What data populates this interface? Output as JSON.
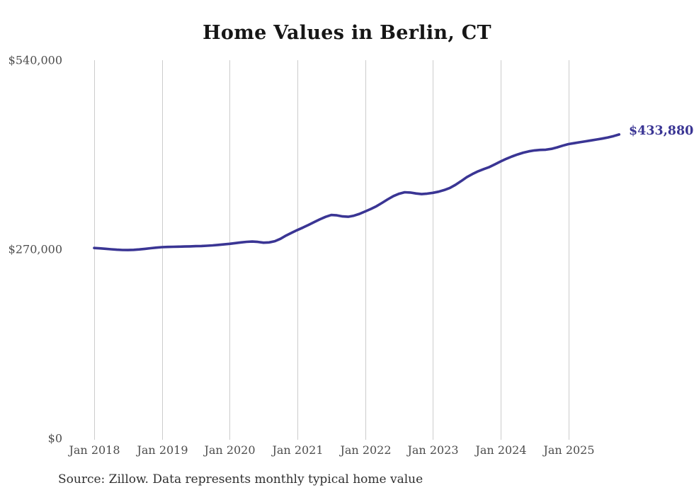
{
  "title": "Home Values in Berlin, CT",
  "source_note": "Source: Zillow. Data represents monthly typical home value",
  "end_label": "$433,880",
  "colors": {
    "line": "#3a3594",
    "end_label_text": "#3a3594",
    "grid": "#cccccc",
    "axis_text": "#4d4d4d",
    "title_text": "#161616",
    "source_text": "#2f2f2f",
    "background": "#ffffff"
  },
  "chart_data": {
    "type": "line",
    "title": "Home Values in Berlin, CT",
    "xlabel": "",
    "ylabel": "",
    "ylim": [
      0,
      540000
    ],
    "y_ticks": [
      0,
      270000,
      540000
    ],
    "y_tick_labels": [
      "$0",
      "$270,000",
      "$540,000"
    ],
    "x_tick_labels": [
      "Jan 2018",
      "Jan 2019",
      "Jan 2020",
      "Jan 2021",
      "Jan 2022",
      "Jan 2023",
      "Jan 2024",
      "Jan 2025"
    ],
    "grid": "vertical-only",
    "legend": "none",
    "end_annotation": {
      "text": "$433,880",
      "value": 433880
    },
    "series": [
      {
        "name": "Monthly typical home value",
        "x": [
          "2018-01",
          "2018-02",
          "2018-03",
          "2018-04",
          "2018-05",
          "2018-06",
          "2018-07",
          "2018-08",
          "2018-09",
          "2018-10",
          "2018-11",
          "2018-12",
          "2019-01",
          "2019-02",
          "2019-03",
          "2019-04",
          "2019-05",
          "2019-06",
          "2019-07",
          "2019-08",
          "2019-09",
          "2019-10",
          "2019-11",
          "2019-12",
          "2020-01",
          "2020-02",
          "2020-03",
          "2020-04",
          "2020-05",
          "2020-06",
          "2020-07",
          "2020-08",
          "2020-09",
          "2020-10",
          "2020-11",
          "2020-12",
          "2021-01",
          "2021-02",
          "2021-03",
          "2021-04",
          "2021-05",
          "2021-06",
          "2021-07",
          "2021-08",
          "2021-09",
          "2021-10",
          "2021-11",
          "2021-12",
          "2022-01",
          "2022-02",
          "2022-03",
          "2022-04",
          "2022-05",
          "2022-06",
          "2022-07",
          "2022-08",
          "2022-09",
          "2022-10",
          "2022-11",
          "2022-12",
          "2023-01",
          "2023-02",
          "2023-03",
          "2023-04",
          "2023-05",
          "2023-06",
          "2023-07",
          "2023-08",
          "2023-09",
          "2023-10",
          "2023-11",
          "2023-12",
          "2024-01",
          "2024-02",
          "2024-03",
          "2024-04",
          "2024-05",
          "2024-06",
          "2024-07",
          "2024-08",
          "2024-09",
          "2024-10",
          "2024-11",
          "2024-12",
          "2025-01",
          "2025-02",
          "2025-03",
          "2025-04",
          "2025-05",
          "2025-06",
          "2025-07",
          "2025-08",
          "2025-09",
          "2025-10"
        ],
        "values": [
          271800,
          271300,
          270700,
          270000,
          269400,
          269000,
          268900,
          269200,
          269800,
          270600,
          271500,
          272300,
          273000,
          273300,
          273500,
          273700,
          273900,
          274100,
          274400,
          274700,
          275100,
          275600,
          276300,
          277000,
          277800,
          278800,
          279800,
          280600,
          281000,
          280500,
          279400,
          279800,
          281500,
          285000,
          289600,
          293700,
          297500,
          301000,
          304900,
          308900,
          312900,
          316300,
          318900,
          318400,
          316900,
          316400,
          317900,
          320600,
          324000,
          327500,
          331500,
          336200,
          341300,
          345900,
          349300,
          351400,
          351000,
          349700,
          348800,
          349500,
          350600,
          352200,
          354500,
          357600,
          362000,
          367300,
          372900,
          377400,
          381300,
          384500,
          387400,
          391300,
          395400,
          399100,
          402500,
          405400,
          407900,
          409900,
          411200,
          411900,
          412200,
          413400,
          415500,
          417900,
          420200,
          421500,
          422800,
          424100,
          425400,
          426700,
          428100,
          429700,
          431600,
          433880
        ]
      }
    ]
  }
}
